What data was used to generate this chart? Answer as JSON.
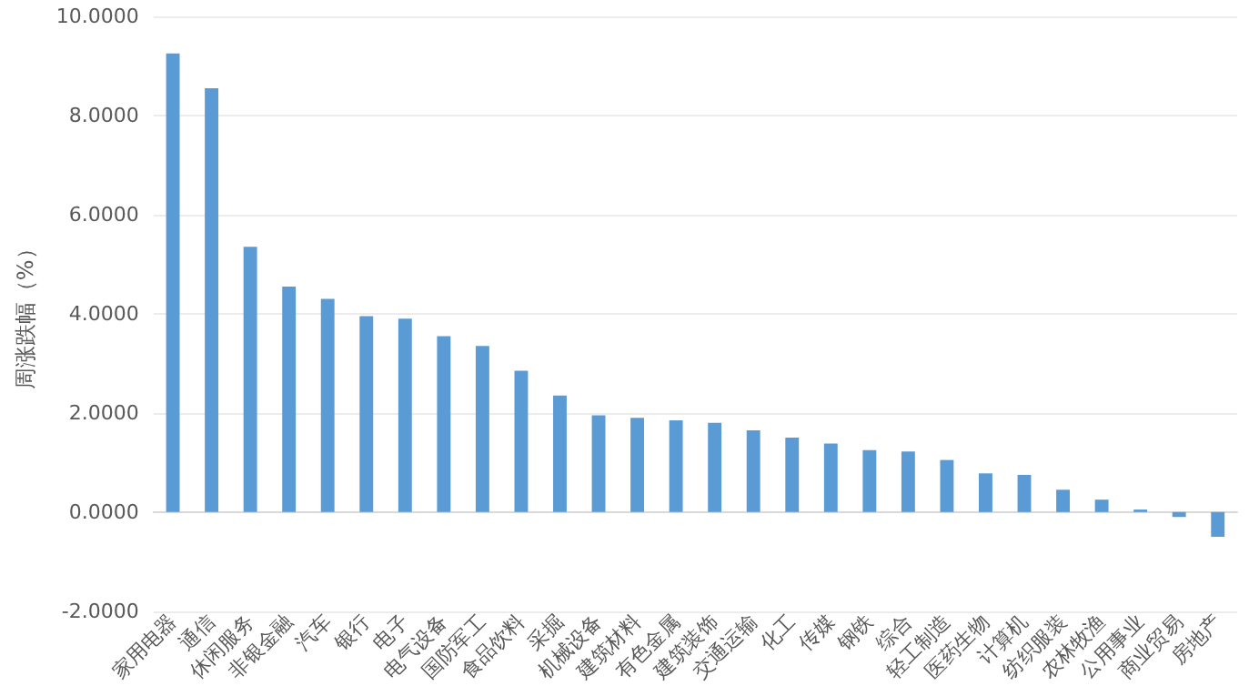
{
  "chart_data": {
    "type": "bar",
    "ylabel": "周涨跌幅（%）",
    "categories": [
      "家用电器",
      "通信",
      "休闲服务",
      "非银金融",
      "汽车",
      "银行",
      "电子",
      "电气设备",
      "国防军工",
      "食品饮料",
      "采掘",
      "机械设备",
      "建筑材料",
      "有色金属",
      "建筑装饰",
      "交通运输",
      "化工",
      "传媒",
      "钢铁",
      "综合",
      "轻工制造",
      "医药生物",
      "计算机",
      "纺织服装",
      "农林牧渔",
      "公用事业",
      "商业贸易",
      "房地产"
    ],
    "values": [
      9.25,
      8.55,
      5.35,
      4.55,
      4.3,
      3.95,
      3.9,
      3.55,
      3.35,
      2.85,
      2.35,
      1.95,
      1.9,
      1.85,
      1.8,
      1.65,
      1.5,
      1.38,
      1.25,
      1.22,
      1.05,
      0.78,
      0.75,
      0.45,
      0.25,
      0.05,
      -0.1,
      -0.5
    ],
    "color": "#5b9bd5",
    "ylim": [
      -2,
      10
    ],
    "yticks": [
      {
        "value": -2,
        "label": "-2.0000"
      },
      {
        "value": 0,
        "label": "0.0000"
      },
      {
        "value": 2,
        "label": "2.0000"
      },
      {
        "value": 4,
        "label": "4.0000"
      },
      {
        "value": 6,
        "label": "6.0000"
      },
      {
        "value": 8,
        "label": "8.0000"
      },
      {
        "value": 10,
        "label": "10.0000"
      }
    ],
    "grid": "y"
  }
}
